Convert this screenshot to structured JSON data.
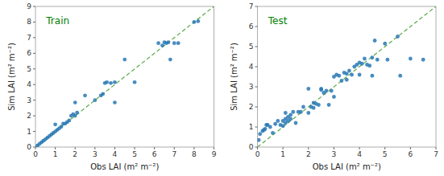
{
  "chart_data": [
    {
      "type": "scatter",
      "x_label": "Obs LAI (m² m⁻²)",
      "y_label": "Sim LAI (m² m⁻²)",
      "annotations": [
        {
          "text": "Train",
          "color": "#008000"
        }
      ],
      "series": [
        {
          "type": "scatter",
          "color": "#2878b5",
          "marker": "circle",
          "x": [
            0.1,
            0.2,
            0.3,
            0.4,
            0.5,
            0.6,
            0.7,
            0.8,
            0.9,
            1.0,
            1.0,
            1.1,
            1.2,
            1.3,
            1.4,
            1.5,
            1.6,
            1.7,
            1.8,
            1.9,
            2.0,
            2.0,
            2.1,
            2.5,
            3.0,
            3.3,
            3.4,
            3.5,
            3.6,
            3.8,
            4.0,
            4.0,
            4.5,
            5.0,
            6.2,
            6.4,
            6.5,
            6.6,
            6.7,
            6.8,
            7.0,
            7.2,
            8.0,
            8.2
          ],
          "values": [
            0.1,
            0.2,
            0.3,
            0.4,
            0.5,
            0.6,
            0.7,
            0.8,
            0.9,
            1.0,
            1.45,
            1.1,
            1.2,
            1.3,
            1.5,
            1.5,
            1.6,
            1.7,
            2.0,
            2.1,
            2.0,
            2.85,
            2.2,
            3.3,
            3.0,
            3.3,
            3.4,
            4.1,
            4.15,
            4.1,
            4.15,
            2.85,
            5.6,
            4.15,
            6.65,
            6.5,
            6.7,
            6.65,
            6.7,
            5.6,
            6.65,
            6.65,
            8.0,
            8.05
          ]
        },
        {
          "type": "line",
          "color": "#5aaa46",
          "line_style": "dashed",
          "x": [
            0,
            9
          ],
          "values": [
            0,
            9
          ]
        }
      ],
      "xlim": [
        0,
        9
      ],
      "ylim": [
        0,
        9
      ],
      "xticks": [
        0,
        1,
        2,
        3,
        4,
        5,
        6,
        7,
        8,
        9
      ],
      "yticks": [
        0,
        1,
        2,
        3,
        4,
        5,
        6,
        7,
        8,
        9
      ],
      "grid": false
    },
    {
      "type": "scatter",
      "x_label": "Obs LAI (m² m⁻²)",
      "y_label": "Sim LAI (m² m⁻²)",
      "annotations": [
        {
          "text": "Test",
          "color": "#008000"
        }
      ],
      "series": [
        {
          "type": "scatter",
          "color": "#2878b5",
          "marker": "circle",
          "x": [
            0.05,
            0.1,
            0.2,
            0.25,
            0.3,
            0.35,
            0.4,
            0.5,
            0.6,
            0.7,
            0.8,
            0.9,
            1.0,
            1.0,
            1.1,
            1.1,
            1.1,
            1.2,
            1.2,
            1.3,
            1.3,
            1.4,
            1.5,
            1.6,
            1.7,
            1.8,
            2.0,
            2.0,
            2.1,
            2.2,
            2.2,
            2.3,
            2.4,
            2.5,
            2.5,
            2.6,
            2.7,
            2.8,
            2.9,
            3.0,
            3.0,
            3.1,
            3.2,
            3.3,
            3.4,
            3.5,
            3.5,
            3.6,
            3.7,
            3.8,
            3.9,
            4.0,
            4.0,
            4.1,
            4.2,
            4.3,
            4.4,
            4.5,
            4.5,
            4.6,
            4.7,
            5.0,
            5.1,
            5.5,
            5.6,
            6.0,
            6.5
          ],
          "values": [
            0.35,
            0.65,
            0.8,
            0.85,
            0.9,
            1.1,
            1.1,
            1.0,
            0.7,
            1.15,
            1.3,
            1.1,
            1.05,
            1.3,
            1.2,
            1.4,
            1.7,
            1.5,
            1.3,
            1.4,
            1.6,
            1.75,
            1.2,
            1.75,
            1.75,
            2.0,
            1.7,
            2.9,
            2.0,
            1.95,
            2.2,
            2.15,
            2.1,
            2.85,
            2.9,
            2.7,
            2.8,
            2.1,
            2.8,
            2.5,
            3.5,
            3.6,
            3.55,
            3.3,
            3.7,
            3.35,
            3.65,
            3.8,
            3.6,
            4.0,
            4.1,
            4.2,
            3.6,
            4.15,
            4.4,
            4.1,
            4.05,
            3.55,
            4.45,
            5.3,
            4.35,
            5.15,
            4.35,
            5.5,
            3.55,
            4.4,
            4.35
          ]
        },
        {
          "type": "line",
          "color": "#5aaa46",
          "line_style": "dashed",
          "x": [
            0,
            7
          ],
          "values": [
            0,
            7
          ]
        }
      ],
      "xlim": [
        0,
        7
      ],
      "ylim": [
        0,
        7
      ],
      "xticks": [
        0,
        1,
        2,
        3,
        4,
        5,
        6,
        7
      ],
      "yticks": [
        0,
        1,
        2,
        3,
        4,
        5,
        6,
        7
      ],
      "grid": false
    }
  ]
}
